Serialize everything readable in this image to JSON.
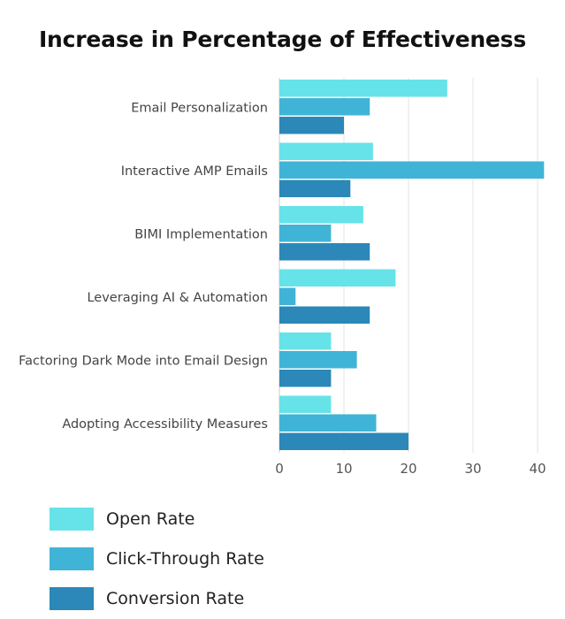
{
  "chart_data": {
    "type": "bar",
    "orientation": "horizontal",
    "title": "Increase in Percentage of Effectiveness",
    "xlabel": "",
    "ylabel": "",
    "xlim": [
      0,
      42
    ],
    "x_ticks": [
      0,
      10,
      20,
      30,
      40
    ],
    "grid": true,
    "legend_position": "bottom-left",
    "categories": [
      "Email Personalization",
      "Interactive AMP Emails",
      "BIMI Implementation",
      "Leveraging AI & Automation",
      "Factoring Dark Mode into Email Design",
      "Adopting Accessibility Measures"
    ],
    "series": [
      {
        "name": "Open Rate",
        "color": "#66e3e8",
        "values": [
          26,
          14.5,
          13,
          18,
          8,
          8
        ]
      },
      {
        "name": "Click-Through Rate",
        "color": "#40b4d6",
        "values": [
          14,
          41,
          8,
          2.5,
          12,
          15
        ]
      },
      {
        "name": "Conversion Rate",
        "color": "#2b88b8",
        "values": [
          10,
          11,
          14,
          14,
          8,
          20
        ]
      }
    ]
  }
}
